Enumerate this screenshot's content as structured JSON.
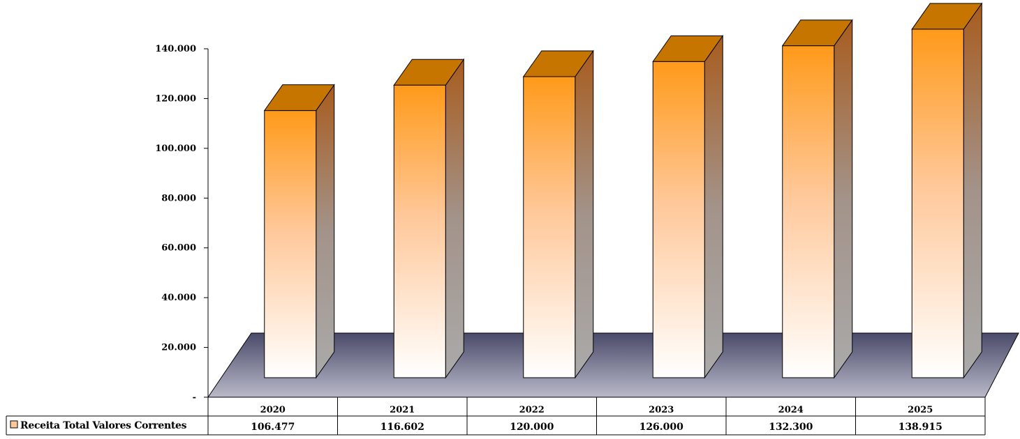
{
  "chart_data": {
    "type": "bar",
    "style": "3d-column-with-data-table",
    "categories": [
      "2020",
      "2021",
      "2022",
      "2023",
      "2024",
      "2025"
    ],
    "series": [
      {
        "name": "Receita Total Valores Correntes",
        "values": [
          106477,
          116602,
          120000,
          126000,
          132300,
          138915
        ],
        "display_values": [
          "106.477",
          "116.602",
          "120.000",
          "126.000",
          "132.300",
          "138.915"
        ],
        "color_top": "#ff9a1a",
        "color_bottom": "#ffffff",
        "top_face_color": "#c67600",
        "side_face_color_top": "#a85c1e",
        "side_face_color_bottom": "#aaaaaa"
      }
    ],
    "yticks": [
      "-",
      "20.000",
      "40.000",
      "60.000",
      "80.000",
      "100.000",
      "120.000",
      "140.000"
    ],
    "ylim": [
      0,
      140000
    ],
    "floor_color_back": "#4a4a6a",
    "floor_color_front": "#b9b9c9",
    "grid": false
  }
}
